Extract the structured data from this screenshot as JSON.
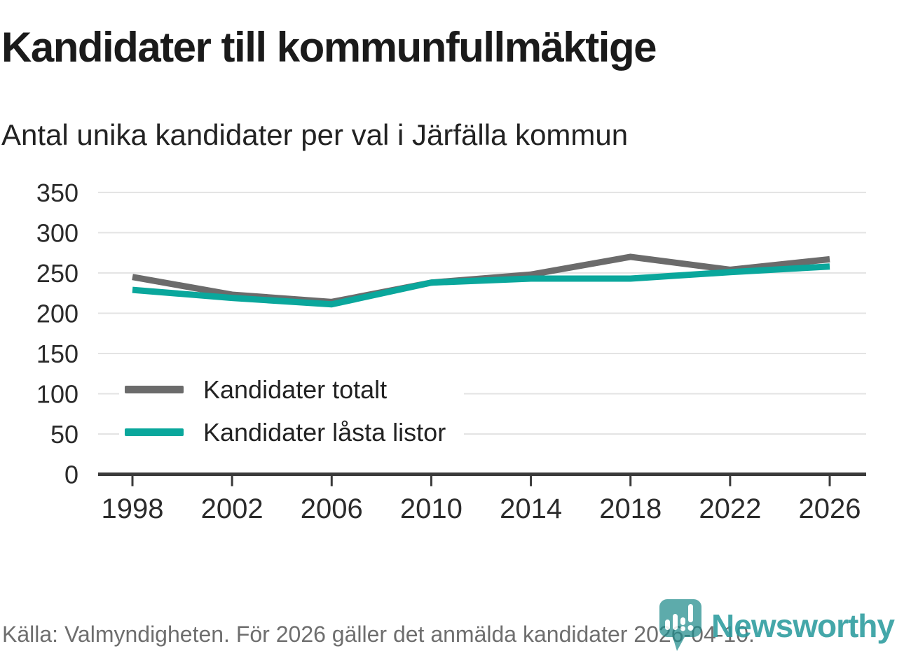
{
  "header": {
    "title": "Kandidater till kommunfullmäktige",
    "subtitle": "Antal unika kandidater per val i Järfälla kommun"
  },
  "chart_data": {
    "type": "line",
    "title": "Kandidater till kommunfullmäktige",
    "subtitle": "Antal unika kandidater per val i Järfälla kommun",
    "x": [
      1998,
      2002,
      2006,
      2010,
      2014,
      2018,
      2022,
      2026
    ],
    "series": [
      {
        "name": "Kandidater totalt",
        "color": "#6b6b6b",
        "values": [
          245,
          223,
          214,
          238,
          248,
          270,
          254,
          267
        ]
      },
      {
        "name": "Kandidater låsta listor",
        "color": "#0aa79c",
        "values": [
          229,
          219,
          211,
          238,
          243,
          243,
          251,
          258
        ]
      }
    ],
    "ylim": [
      0,
      350
    ],
    "ytick_step": 50,
    "xtick_labels": [
      "1998",
      "2002",
      "2006",
      "2010",
      "2014",
      "2018",
      "2022",
      "2026"
    ],
    "grid": "horizontal",
    "legend_position": "inside-left",
    "axis_color": "#3a3a3a",
    "gridline_color": "#e3e3e3",
    "tick_label_color": "#2b2b2b"
  },
  "footer": {
    "source": "Källa: Valmyndigheten. För 2026 gäller det anmälda kandidater 2026-04-10.",
    "brand": "Newsworthy",
    "brand_color": "#2b9b9e",
    "brand_icon": "newsworthy-pin-barchart-icon"
  }
}
